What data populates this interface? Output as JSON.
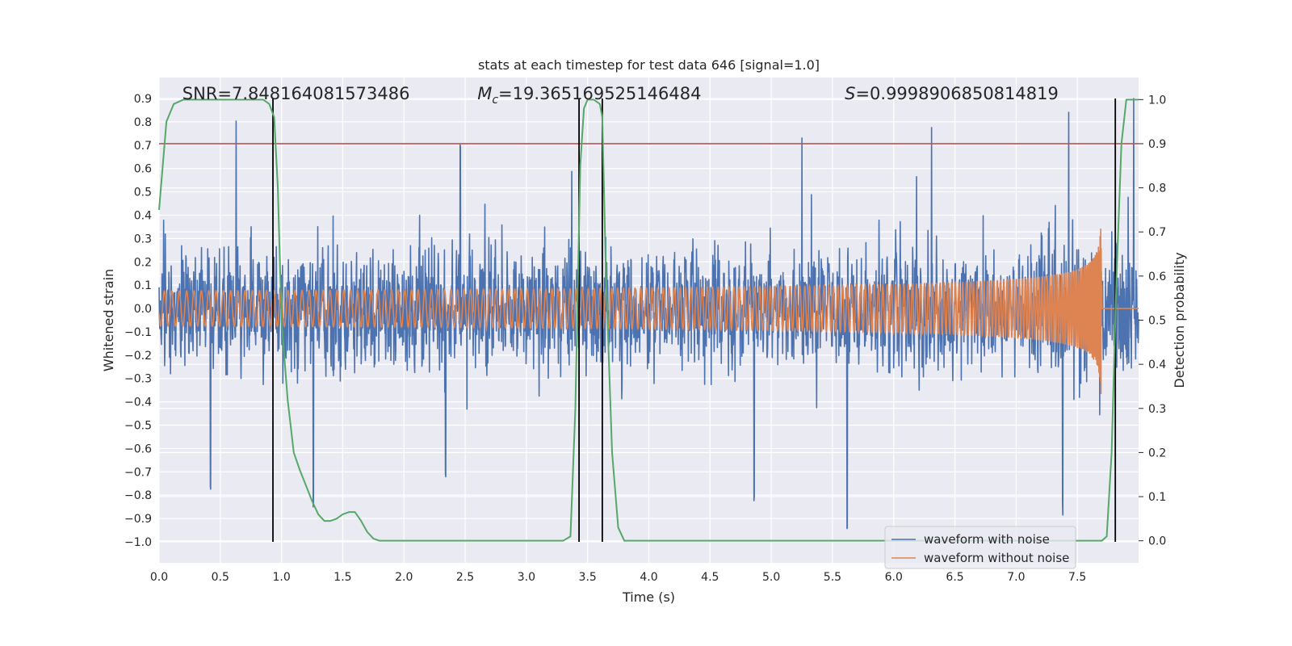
{
  "chart_data": {
    "type": "line",
    "title": "stats at each timestep for test data 646 [signal=1.0]",
    "xlabel": "Time (s)",
    "ylabel_left": "Whitened strain",
    "ylabel_right": "Detection probability",
    "xlim": [
      0.0,
      8.0
    ],
    "ylim_left": [
      -1.09,
      0.99
    ],
    "ylim_right": [
      -0.05,
      1.05
    ],
    "x_ticks": [
      "0.0",
      "0.5",
      "1.0",
      "1.5",
      "2.0",
      "2.5",
      "3.0",
      "3.5",
      "4.0",
      "4.5",
      "5.0",
      "5.5",
      "6.0",
      "6.5",
      "7.0",
      "7.5"
    ],
    "y_ticks_left": [
      "0.9",
      "0.8",
      "0.7",
      "0.6",
      "0.5",
      "0.4",
      "0.3",
      "0.2",
      "0.1",
      "0.0",
      "−0.1",
      "−0.2",
      "−0.3",
      "−0.4",
      "−0.5",
      "−0.6",
      "−0.7",
      "−0.8",
      "−0.9",
      "−1.0"
    ],
    "y_ticks_right": [
      "1.0",
      "0.9",
      "0.8",
      "0.7",
      "0.6",
      "0.5",
      "0.4",
      "0.3",
      "0.2",
      "0.1",
      "0.0"
    ],
    "annotations": {
      "snr": "SNR=7.848164081573486",
      "mc_symbol": "M",
      "mc_sub": "c",
      "mc_value": "=19.365169525146484",
      "s_symbol": "S",
      "s_value": "=0.9998906850814819"
    },
    "series": [
      {
        "name": "waveform with noise",
        "color": "#4c72b0",
        "axis": "left",
        "description": "whitened noisy strain, amplitude mostly within ±0.5 with spikes to about 0.8 and down to -1.0",
        "noise_envelope": 0.33,
        "spikes": [
          {
            "t": 0.63,
            "v": 0.8
          },
          {
            "t": 0.42,
            "v": -0.77
          },
          {
            "t": 1.26,
            "v": -0.81
          },
          {
            "t": 2.46,
            "v": 0.74
          },
          {
            "t": 2.34,
            "v": -0.74
          },
          {
            "t": 3.37,
            "v": 0.59
          },
          {
            "t": 4.86,
            "v": -0.85
          },
          {
            "t": 5.25,
            "v": 0.78
          },
          {
            "t": 5.62,
            "v": -1.0
          },
          {
            "t": 6.31,
            "v": 0.76
          },
          {
            "t": 7.43,
            "v": 0.77
          },
          {
            "t": 7.38,
            "v": -0.8
          },
          {
            "t": 7.96,
            "v": 0.9
          }
        ]
      },
      {
        "name": "waveform without noise",
        "color": "#dd8452",
        "axis": "left",
        "description": "chirp signal growing in amplitude and frequency, merger near t=7.7 s",
        "merger_time": 7.7,
        "peak_amplitude": 0.43
      },
      {
        "name": "detection probability",
        "color": "#55a868",
        "axis": "right",
        "x": [
          0.0,
          0.06,
          0.12,
          0.2,
          0.3,
          0.5,
          0.7,
          0.85,
          0.9,
          0.94,
          0.97,
          1.0,
          1.05,
          1.1,
          1.15,
          1.25,
          1.3,
          1.35,
          1.4,
          1.45,
          1.5,
          1.55,
          1.6,
          1.65,
          1.7,
          1.75,
          1.8,
          2.0,
          2.5,
          3.0,
          3.3,
          3.36,
          3.4,
          3.44,
          3.47,
          3.5,
          3.55,
          3.6,
          3.62,
          3.65,
          3.7,
          3.75,
          3.8,
          4.0,
          5.0,
          6.0,
          7.0,
          7.6,
          7.7,
          7.74,
          7.78,
          7.82,
          7.86,
          7.9,
          7.96,
          8.0
        ],
        "values": [
          0.75,
          0.95,
          0.99,
          1.0,
          1.0,
          1.0,
          1.0,
          1.0,
          0.99,
          0.96,
          0.8,
          0.5,
          0.32,
          0.2,
          0.16,
          0.09,
          0.06,
          0.045,
          0.045,
          0.05,
          0.06,
          0.065,
          0.065,
          0.045,
          0.02,
          0.005,
          0.0,
          0.0,
          0.0,
          0.0,
          0.0,
          0.01,
          0.3,
          0.85,
          0.98,
          1.0,
          1.0,
          0.99,
          0.96,
          0.6,
          0.2,
          0.03,
          0.0,
          0.0,
          0.0,
          0.0,
          0.0,
          0.0,
          0.0,
          0.01,
          0.2,
          0.6,
          0.9,
          1.0,
          1.0,
          1.0
        ]
      }
    ],
    "threshold": {
      "axis": "right",
      "value": 0.9,
      "color": "#c44e52"
    },
    "event_markers": {
      "times": [
        0.93,
        3.43,
        3.62,
        7.81
      ],
      "ymin": -1.0,
      "ymax": 0.9,
      "color": "#000000"
    },
    "legend": {
      "location": "lower-right",
      "entries": [
        {
          "label": "waveform with noise",
          "color": "#4c72b0"
        },
        {
          "label": "waveform without noise",
          "color": "#dd8452"
        }
      ]
    },
    "style": {
      "background": "#eaeaf2",
      "grid": true,
      "grid_color": "#ffffff"
    }
  }
}
